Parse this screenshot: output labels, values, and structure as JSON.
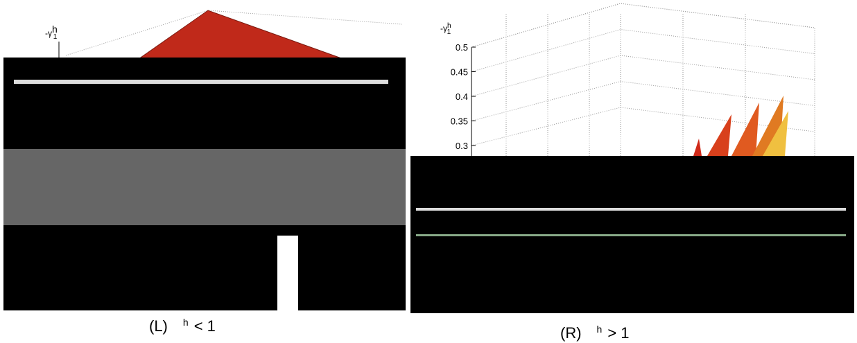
{
  "panels": [
    {
      "axis_label": "-γ",
      "axis_label_sup": "h",
      "axis_label_sub": "1",
      "caption_prefix": "(L)",
      "caption_sup": "h",
      "caption_suffix": "< 1"
    },
    {
      "axis_label": "-γ",
      "axis_label_sup": "h",
      "axis_label_sub": "1",
      "yticks": [
        "0.5",
        "0.45",
        "0.4",
        "0.35",
        "0.3"
      ],
      "caption_prefix": "(R)",
      "caption_sup": "h",
      "caption_suffix": "> 1"
    }
  ]
}
